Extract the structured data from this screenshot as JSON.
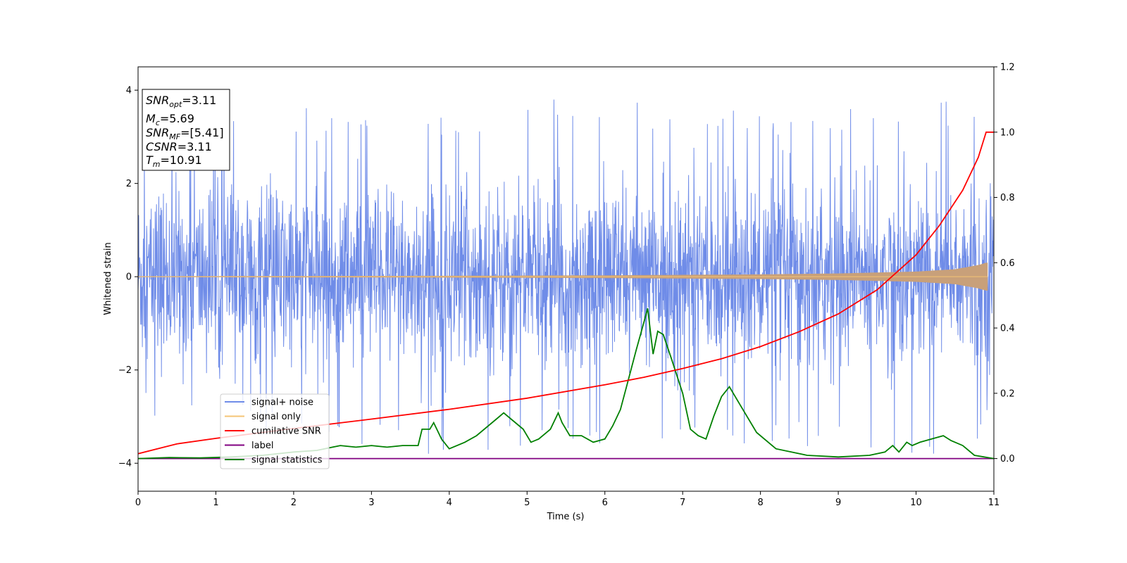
{
  "chart_data": {
    "type": "line",
    "xlabel": "Time (s)",
    "ylabel": "Whitened strain",
    "xlim": [
      0,
      11
    ],
    "ylim": [
      -4.6,
      4.5
    ],
    "y2lim": [
      -0.1,
      1.2
    ],
    "x_ticks": [
      0,
      1,
      2,
      3,
      4,
      5,
      6,
      7,
      8,
      9,
      10,
      11
    ],
    "y_ticks": [
      -4,
      -2,
      0,
      2,
      4
    ],
    "y2_ticks": [
      0.0,
      0.2,
      0.4,
      0.6,
      0.8,
      1.0,
      1.2
    ],
    "legend_position": "lower-left",
    "colors": {
      "signal_noise": "#6f8ce8",
      "signal_only": "#f5c476",
      "signal_only_fill": "#c8a07a",
      "cumulative_snr": "#ff0000",
      "label": "#800080",
      "signal_statistics": "#008000"
    },
    "annotation": {
      "snr_opt": {
        "base": "SNR",
        "sub": "opt",
        "value": "=3.11"
      },
      "mc": {
        "base": "M",
        "sub": "c",
        "value": "=5.69"
      },
      "snr_mf": {
        "base": "SNR",
        "sub": "MF",
        "value": "=[5.41]"
      },
      "csnr": {
        "base": "CSNR",
        "sub": "",
        "value": "=3.11"
      },
      "tm": {
        "base": "T",
        "sub": "m",
        "value": "=10.91"
      }
    },
    "series": [
      {
        "name": "signal+ noise",
        "axis": "left",
        "kind": "noise",
        "envelope": {
          "x": [
            0,
            1,
            2,
            3,
            4,
            5,
            6,
            7,
            8,
            9,
            10,
            11
          ],
          "y_max": [
            3.2,
            3.3,
            3.7,
            3.6,
            3.4,
            3.8,
            3.8,
            3.7,
            3.5,
            3.6,
            3.9,
            3.6
          ],
          "y_min": [
            -3.3,
            -3.2,
            -3.5,
            -3.6,
            -3.9,
            -3.6,
            -3.8,
            -3.8,
            -3.6,
            -3.7,
            -4.1,
            -3.5
          ]
        }
      },
      {
        "name": "signal only",
        "axis": "left",
        "kind": "chirp",
        "amplitude": {
          "x": [
            0,
            2,
            4,
            6,
            8,
            9,
            10,
            10.5,
            10.8,
            10.9,
            11
          ],
          "y": [
            0.01,
            0.015,
            0.02,
            0.03,
            0.05,
            0.07,
            0.11,
            0.16,
            0.25,
            0.3,
            0.3
          ]
        }
      },
      {
        "name": "cumilative SNR",
        "axis": "right",
        "x": [
          0,
          0.5,
          1,
          2,
          3,
          4,
          5,
          6,
          6.5,
          7,
          7.5,
          8,
          8.5,
          9,
          9.5,
          10,
          10.3,
          10.6,
          10.8,
          10.9,
          11
        ],
        "y": [
          0.015,
          0.045,
          0.062,
          0.092,
          0.121,
          0.151,
          0.185,
          0.226,
          0.249,
          0.276,
          0.306,
          0.343,
          0.389,
          0.443,
          0.517,
          0.624,
          0.714,
          0.822,
          0.923,
          1.0,
          1.0
        ]
      },
      {
        "name": "label",
        "axis": "right",
        "x": [
          0,
          11
        ],
        "y": [
          0,
          0
        ]
      },
      {
        "name": "signal statistics",
        "axis": "right",
        "x": [
          0,
          0.4,
          0.8,
          1.2,
          1.6,
          2.0,
          2.3,
          2.5,
          2.6,
          2.8,
          3.0,
          3.2,
          3.4,
          3.6,
          3.65,
          3.75,
          3.8,
          3.9,
          4.0,
          4.2,
          4.35,
          4.6,
          4.7,
          4.8,
          4.95,
          5.05,
          5.15,
          5.3,
          5.4,
          5.45,
          5.55,
          5.7,
          5.85,
          6.0,
          6.1,
          6.2,
          6.3,
          6.4,
          6.47,
          6.55,
          6.62,
          6.68,
          6.75,
          6.85,
          7.0,
          7.1,
          7.2,
          7.3,
          7.4,
          7.5,
          7.6,
          7.75,
          7.95,
          8.2,
          8.6,
          9.0,
          9.4,
          9.6,
          9.7,
          9.78,
          9.88,
          9.95,
          10.05,
          10.2,
          10.35,
          10.45,
          10.6,
          10.75,
          11
        ],
        "y": [
          0,
          0.003,
          0.002,
          0.005,
          0.01,
          0.02,
          0.025,
          0.035,
          0.04,
          0.035,
          0.04,
          0.035,
          0.04,
          0.04,
          0.09,
          0.09,
          0.11,
          0.06,
          0.03,
          0.05,
          0.07,
          0.12,
          0.14,
          0.12,
          0.09,
          0.05,
          0.06,
          0.09,
          0.14,
          0.11,
          0.07,
          0.07,
          0.05,
          0.06,
          0.1,
          0.15,
          0.24,
          0.33,
          0.39,
          0.46,
          0.32,
          0.39,
          0.38,
          0.31,
          0.2,
          0.09,
          0.07,
          0.06,
          0.13,
          0.19,
          0.22,
          0.16,
          0.08,
          0.03,
          0.01,
          0.005,
          0.01,
          0.02,
          0.04,
          0.02,
          0.05,
          0.04,
          0.05,
          0.06,
          0.07,
          0.055,
          0.04,
          0.01,
          0.0
        ]
      }
    ]
  }
}
